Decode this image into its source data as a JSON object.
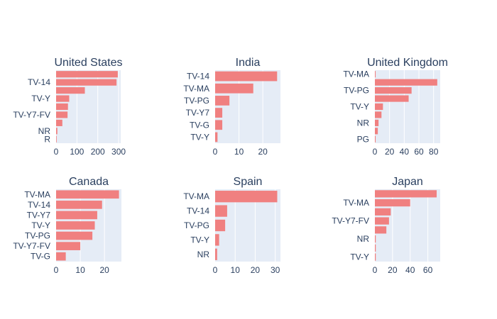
{
  "chart_data": [
    {
      "type": "bar",
      "orientation": "horizontal",
      "title": "United States",
      "categories": [
        "R",
        "NR",
        "",
        "TV-Y7-FV",
        "",
        "TV-Y",
        "",
        "TV-14",
        ""
      ],
      "values": [
        1,
        6,
        30,
        55,
        57,
        63,
        138,
        290,
        296
      ],
      "xlim": [
        0,
        310
      ],
      "xticks": [
        0,
        100,
        200,
        300
      ],
      "color": "#f08080"
    },
    {
      "type": "bar",
      "orientation": "horizontal",
      "title": "India",
      "categories": [
        "TV-Y",
        "TV-G",
        "TV-Y7",
        "TV-PG",
        "TV-MA",
        "TV-14"
      ],
      "values": [
        1,
        3,
        3,
        6,
        16,
        26
      ],
      "xlim": [
        0,
        27.4
      ],
      "xticks": [
        0,
        10,
        20
      ],
      "color": "#f08080"
    },
    {
      "type": "bar",
      "orientation": "horizontal",
      "title": "United Kingdom",
      "categories": [
        "PG",
        "",
        "NR",
        "",
        "TV-Y",
        "",
        "TV-PG",
        "",
        "TV-MA"
      ],
      "values": [
        1,
        4,
        5,
        9,
        11,
        46,
        50,
        85,
        1
      ],
      "xlim": [
        0,
        89
      ],
      "xticks": [
        0,
        20,
        40,
        60,
        80
      ],
      "color": "#f08080"
    },
    {
      "type": "bar",
      "orientation": "horizontal",
      "title": "Canada",
      "categories": [
        "TV-G",
        "TV-Y7-FV",
        "TV-PG",
        "TV-Y",
        "TV-Y7",
        "TV-14",
        "TV-MA"
      ],
      "values": [
        4,
        10,
        15,
        16,
        17,
        19,
        26
      ],
      "xlim": [
        0,
        27
      ],
      "xticks": [
        0,
        10,
        20
      ],
      "color": "#f08080"
    },
    {
      "type": "bar",
      "orientation": "horizontal",
      "title": "Spain",
      "categories": [
        "NR",
        "TV-Y",
        "TV-PG",
        "TV-14",
        "TV-MA"
      ],
      "values": [
        1,
        2,
        5,
        6,
        31
      ],
      "xlim": [
        0,
        32.6
      ],
      "xticks": [
        0,
        10,
        20,
        30
      ],
      "color": "#f08080"
    },
    {
      "type": "bar",
      "orientation": "horizontal",
      "title": "Japan",
      "categories": [
        "TV-Y",
        "",
        "NR",
        "",
        "TV-Y7-FV",
        "",
        "TV-MA",
        ""
      ],
      "values": [
        1,
        1,
        1,
        13,
        16,
        18,
        40,
        70
      ],
      "xlim": [
        0,
        74
      ],
      "xticks": [
        0,
        20,
        40,
        60
      ],
      "color": "#f08080"
    }
  ]
}
